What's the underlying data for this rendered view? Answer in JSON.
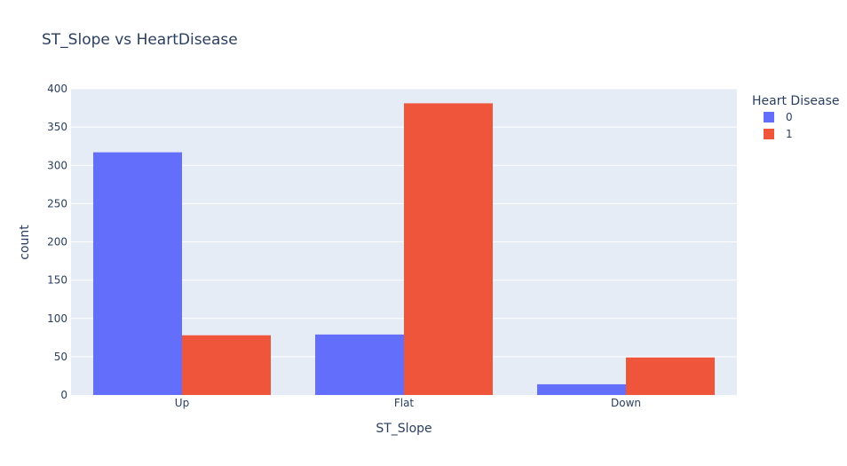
{
  "chart_data": {
    "type": "bar",
    "title": "ST_Slope vs HeartDisease",
    "xlabel": "ST_Slope",
    "ylabel": "count",
    "categories": [
      "Up",
      "Flat",
      "Down"
    ],
    "series": [
      {
        "name": "0",
        "values": [
          317,
          79,
          14
        ],
        "color": "#636efa"
      },
      {
        "name": "1",
        "values": [
          78,
          381,
          49
        ],
        "color": "#ef553b"
      }
    ],
    "ylim": [
      0,
      400
    ],
    "yticks": [
      0,
      50,
      100,
      150,
      200,
      250,
      300,
      350,
      400
    ],
    "legend_title": "Heart Disease",
    "legend_position": "top-right",
    "grid": true,
    "plot_bgcolor": "#e5ecf6"
  }
}
